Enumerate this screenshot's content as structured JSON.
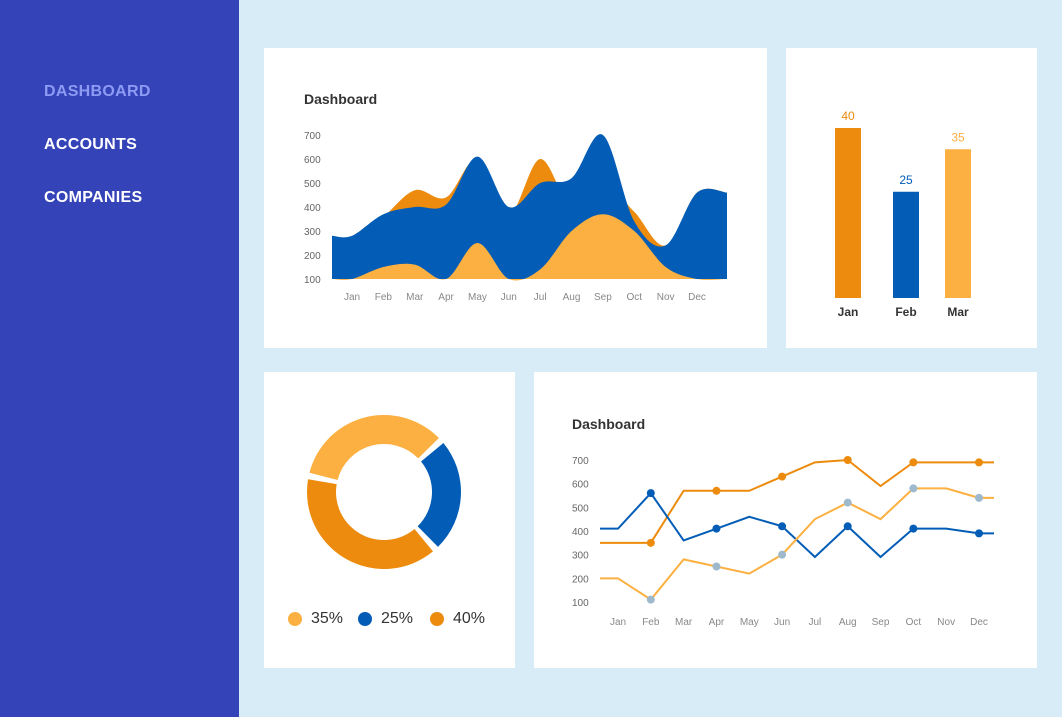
{
  "sidebar": {
    "items": [
      {
        "label": "DASHBOARD",
        "active": true
      },
      {
        "label": "ACCOUNTS",
        "active": false
      },
      {
        "label": "COMPANIES",
        "active": false
      }
    ],
    "bg_color": "#3543b8",
    "active_color": "#8e9bf4"
  },
  "colors": {
    "orange": "#ec8b0d",
    "blue": "#035db6",
    "light_orange": "#fcb041",
    "light_blue": "#9fb9cc"
  },
  "chart_data": [
    {
      "type": "area",
      "title": "Dashboard",
      "categories": [
        "Jan",
        "Feb",
        "Mar",
        "Apr",
        "May",
        "Jun",
        "Jul",
        "Aug",
        "Sep",
        "Oct",
        "Nov",
        "Dec"
      ],
      "yticks": [
        100,
        200,
        300,
        400,
        500,
        600,
        700
      ],
      "ylim": [
        100,
        700
      ],
      "series": [
        {
          "color": "orange",
          "values": [
            270,
            360,
            470,
            440,
            600,
            370,
            600,
            400,
            500,
            380,
            240,
            460
          ]
        },
        {
          "color": "blue",
          "values": [
            280,
            370,
            400,
            410,
            610,
            400,
            500,
            520,
            700,
            340,
            240,
            460
          ]
        },
        {
          "color": "light_orange",
          "values": [
            100,
            150,
            160,
            100,
            250,
            100,
            140,
            300,
            370,
            300,
            150,
            100
          ]
        }
      ]
    },
    {
      "type": "bar",
      "categories": [
        "Jan",
        "Feb",
        "Mar"
      ],
      "values": [
        40,
        25,
        35
      ],
      "colors": [
        "orange",
        "blue",
        "light_orange"
      ],
      "ylim": [
        0,
        40
      ]
    },
    {
      "type": "pie",
      "donut": true,
      "slices": [
        {
          "label": "35%",
          "value": 35,
          "color": "light_orange"
        },
        {
          "label": "25%",
          "value": 25,
          "color": "blue"
        },
        {
          "label": "40%",
          "value": 40,
          "color": "orange"
        }
      ]
    },
    {
      "type": "line",
      "title": "Dashboard",
      "categories": [
        "Jan",
        "Feb",
        "Mar",
        "Apr",
        "May",
        "Jun",
        "Jul",
        "Aug",
        "Sep",
        "Oct",
        "Nov",
        "Dec"
      ],
      "yticks": [
        100,
        200,
        300,
        400,
        500,
        600,
        700
      ],
      "ylim": [
        100,
        700
      ],
      "series": [
        {
          "color": "orange",
          "marker_color": "orange",
          "values": [
            350,
            350,
            570,
            570,
            570,
            630,
            690,
            700,
            590,
            690,
            690,
            690
          ]
        },
        {
          "color": "blue",
          "marker_color": "blue",
          "values": [
            410,
            560,
            360,
            410,
            460,
            420,
            290,
            420,
            290,
            410,
            410,
            390
          ]
        },
        {
          "color": "light_orange",
          "marker_color": "light_blue",
          "values": [
            200,
            110,
            280,
            250,
            220,
            300,
            450,
            520,
            450,
            580,
            580,
            540
          ]
        }
      ]
    }
  ]
}
